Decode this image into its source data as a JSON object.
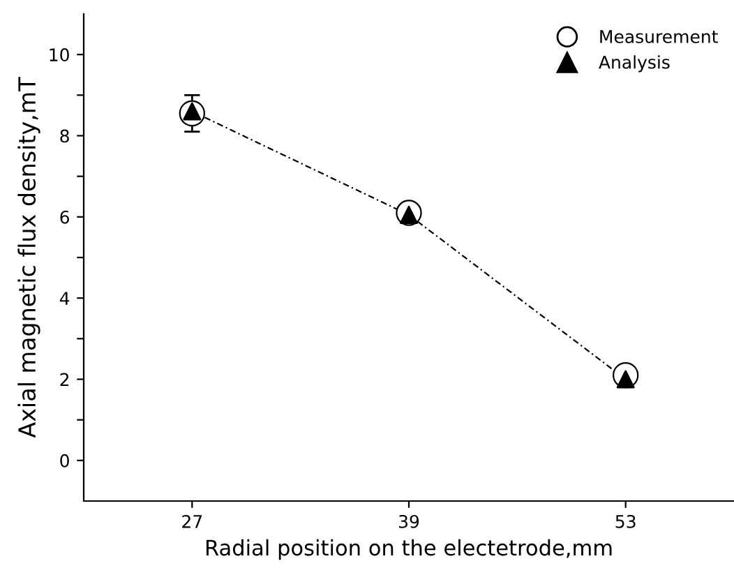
{
  "chart_data": {
    "type": "scatter",
    "xlabel": "Radial position on the electetrode,mm",
    "ylabel": "Axial magnetic flux density,mT",
    "categories": [
      "27",
      "39",
      "53"
    ],
    "series": [
      {
        "name": "Measurement",
        "color": "#000000",
        "marker": "circle",
        "values": [
          8.55,
          6.1,
          2.1
        ],
        "errors": [
          0.45,
          null,
          null
        ]
      },
      {
        "name": "Analysis",
        "color": "#000000",
        "marker": "triangle",
        "type": "line",
        "line_style": "dashed",
        "values": [
          8.6,
          6.05,
          2.0
        ]
      }
    ],
    "ylim": [
      -1,
      11
    ],
    "yticks": [
      0,
      {
        "value": 1,
        "label": null
      },
      2,
      {
        "value": 3,
        "label": null
      },
      4,
      {
        "value": 5,
        "label": null
      },
      6,
      {
        "value": 7,
        "label": null
      },
      8,
      {
        "value": 9,
        "label": null
      },
      10
    ],
    "grid": false,
    "legend": "top right"
  }
}
